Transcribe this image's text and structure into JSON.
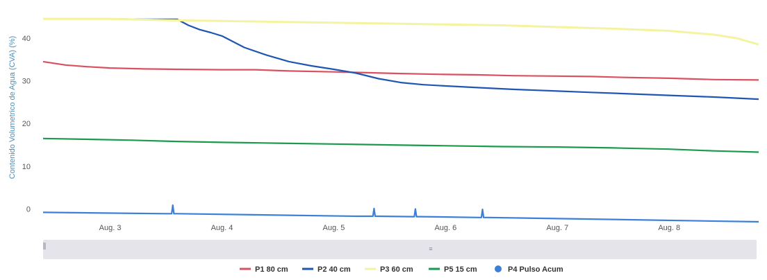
{
  "chart_data": {
    "type": "line",
    "ylabel": "Contenido Volumetrico de Agua (CVA) (%)",
    "ylim": [
      -3,
      46
    ],
    "yticks": [
      0,
      10,
      20,
      30,
      40
    ],
    "x_ticks": [
      "Aug. 3",
      "Aug. 4",
      "Aug. 5",
      "Aug. 6",
      "Aug. 7",
      "Aug. 8"
    ],
    "x_range_days": [
      2.4,
      8.8
    ],
    "grid": false,
    "legend_position": "bottom",
    "series": [
      {
        "name": "P1 80 cm",
        "color": "#d9505f",
        "x": [
          2.4,
          2.6,
          2.8,
          3.0,
          3.3,
          3.6,
          4.0,
          4.3,
          4.6,
          5.0,
          5.3,
          5.6,
          6.0,
          6.3,
          6.6,
          7.0,
          7.3,
          7.6,
          8.0,
          8.4,
          8.8
        ],
        "values": [
          34.5,
          33.7,
          33.3,
          33.0,
          32.8,
          32.7,
          32.6,
          32.6,
          32.3,
          32.1,
          31.9,
          31.7,
          31.5,
          31.4,
          31.2,
          31.1,
          31.0,
          30.8,
          30.6,
          30.3,
          30.2
        ]
      },
      {
        "name": "P2 40 cm",
        "color": "#1f55b3",
        "x": [
          2.4,
          3.0,
          3.3,
          3.6,
          3.7,
          3.8,
          3.9,
          4.0,
          4.2,
          4.4,
          4.6,
          4.8,
          5.0,
          5.2,
          5.4,
          5.6,
          5.8,
          6.0,
          6.3,
          6.6,
          7.0,
          7.3,
          7.6,
          8.0,
          8.4,
          8.8
        ],
        "values": [
          44.5,
          44.5,
          44.4,
          44.4,
          43.0,
          42.0,
          41.3,
          40.5,
          37.8,
          36.0,
          34.5,
          33.5,
          32.7,
          31.8,
          30.5,
          29.6,
          29.1,
          28.8,
          28.4,
          28.0,
          27.6,
          27.3,
          27.0,
          26.6,
          26.2,
          25.7
        ]
      },
      {
        "name": "P3 60 cm",
        "color": "#f3f3a0",
        "x": [
          2.4,
          3.0,
          3.5,
          4.0,
          4.5,
          5.0,
          5.5,
          6.0,
          6.5,
          7.0,
          7.5,
          8.0,
          8.4,
          8.6,
          8.8
        ],
        "values": [
          44.5,
          44.5,
          44.2,
          44.0,
          43.8,
          43.6,
          43.4,
          43.2,
          43.0,
          42.6,
          42.2,
          41.7,
          40.8,
          40.0,
          38.5
        ]
      },
      {
        "name": "P5 15 cm",
        "color": "#1a9a4a",
        "x": [
          2.4,
          2.8,
          3.2,
          3.6,
          4.0,
          4.5,
          5.0,
          5.5,
          6.0,
          6.5,
          7.0,
          7.5,
          8.0,
          8.4,
          8.8
        ],
        "values": [
          16.5,
          16.3,
          16.1,
          15.8,
          15.6,
          15.4,
          15.2,
          15.0,
          14.8,
          14.6,
          14.5,
          14.3,
          14.0,
          13.6,
          13.3
        ]
      },
      {
        "name": "P4 Pulso Acum",
        "color": "#3b7fd9",
        "x": [
          2.4,
          3.5,
          3.55,
          3.56,
          3.57,
          3.6,
          5.2,
          5.35,
          5.36,
          5.37,
          5.4,
          5.7,
          5.72,
          5.73,
          5.74,
          5.78,
          6.3,
          6.32,
          6.33,
          6.34,
          6.38,
          8.8
        ],
        "values": [
          -0.8,
          -1.1,
          -1.1,
          0.9,
          -1.1,
          -1.1,
          -1.7,
          -1.7,
          0.1,
          -1.7,
          -1.7,
          -1.8,
          -1.8,
          0.0,
          -1.8,
          -1.8,
          -2.0,
          -2.0,
          -0.1,
          -2.0,
          -2.0,
          -3.0
        ]
      }
    ]
  },
  "legend": {
    "items": [
      {
        "label": "P1 80 cm",
        "color": "#d9505f",
        "marker": "line"
      },
      {
        "label": "P2 40 cm",
        "color": "#1f55b3",
        "marker": "line"
      },
      {
        "label": "P3 60 cm",
        "color": "#f3f3a0",
        "marker": "line"
      },
      {
        "label": "P5 15 cm",
        "color": "#1a9a4a",
        "marker": "line"
      },
      {
        "label": "P4 Pulso Acum",
        "color": "#3b7fd9",
        "marker": "circle"
      }
    ]
  },
  "navigator": {
    "handle_label": "≡"
  }
}
